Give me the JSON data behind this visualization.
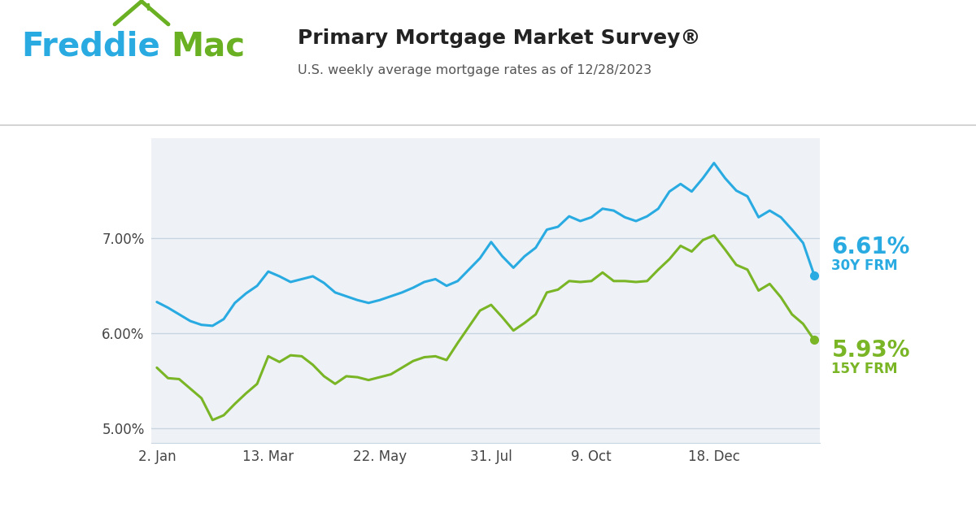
{
  "title": "Primary Mortgage Market Survey®",
  "subtitle": "U.S. weekly average mortgage rates as of 12/28/2023",
  "freddie_blue": "#29ABE2",
  "freddie_green": "#6AB023",
  "line_30y_color": "#29ABE2",
  "line_15y_color": "#7AB526",
  "label_30y": "6.61%",
  "label_15y": "5.93%",
  "label_30y_sub": "30Y FRM",
  "label_15y_sub": "15Y FRM",
  "ylim": [
    4.85,
    8.05
  ],
  "ytick_labels": [
    "5.00%",
    "6.00%",
    "7.00%"
  ],
  "xtick_labels": [
    "2. Jan",
    "13. Mar",
    "22. May",
    "31. Jul",
    "9. Oct",
    "18. Dec"
  ],
  "plot_bg": "#eef2f7",
  "grid_color": "#c8d4e0",
  "rate_30y": [
    6.33,
    6.27,
    6.2,
    6.13,
    6.09,
    6.08,
    6.15,
    6.32,
    6.42,
    6.5,
    6.65,
    6.6,
    6.54,
    6.57,
    6.6,
    6.53,
    6.43,
    6.39,
    6.35,
    6.32,
    6.35,
    6.39,
    6.43,
    6.48,
    6.54,
    6.57,
    6.5,
    6.55,
    6.67,
    6.79,
    6.96,
    6.81,
    6.69,
    6.81,
    6.9,
    7.09,
    7.12,
    7.23,
    7.18,
    7.22,
    7.31,
    7.29,
    7.22,
    7.18,
    7.23,
    7.31,
    7.49,
    7.57,
    7.49,
    7.63,
    7.79,
    7.63,
    7.5,
    7.44,
    7.22,
    7.29,
    7.22,
    7.09,
    6.95,
    6.61
  ],
  "rate_15y": [
    5.64,
    5.53,
    5.52,
    5.42,
    5.32,
    5.09,
    5.14,
    5.26,
    5.37,
    5.47,
    5.76,
    5.7,
    5.77,
    5.76,
    5.67,
    5.55,
    5.47,
    5.55,
    5.54,
    5.51,
    5.54,
    5.57,
    5.64,
    5.71,
    5.75,
    5.76,
    5.72,
    5.9,
    6.07,
    6.24,
    6.3,
    6.17,
    6.03,
    6.11,
    6.2,
    6.43,
    6.46,
    6.55,
    6.54,
    6.55,
    6.64,
    6.55,
    6.55,
    6.54,
    6.55,
    6.67,
    6.78,
    6.92,
    6.86,
    6.98,
    7.03,
    6.88,
    6.72,
    6.67,
    6.45,
    6.52,
    6.38,
    6.2,
    6.1,
    5.93
  ]
}
